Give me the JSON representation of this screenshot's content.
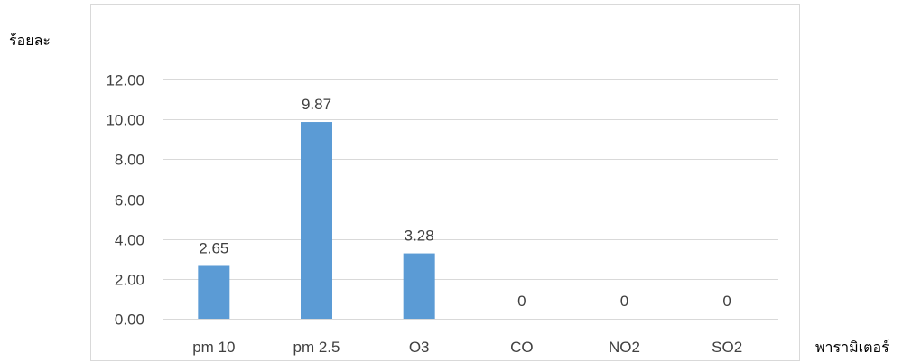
{
  "chart_data": {
    "type": "bar",
    "title": "",
    "xlabel": "พารามิเตอร์",
    "ylabel": "ร้อยละ",
    "categories": [
      "pm 10",
      "pm 2.5",
      "O3",
      "CO",
      "NO2",
      "SO2"
    ],
    "series": [
      {
        "values": [
          2.65,
          9.87,
          3.28,
          0,
          0,
          0
        ]
      }
    ],
    "data_labels": [
      "2.65",
      "9.87",
      "3.28",
      "0",
      "0",
      "0"
    ],
    "ylim": [
      0,
      12
    ],
    "yticks": [
      "0.00",
      "2.00",
      "4.00",
      "6.00",
      "8.00",
      "10.00",
      "12.00"
    ],
    "grid": true,
    "legend": "none",
    "colors": {
      "bar": "#5B9BD5",
      "grid": "#D9D9D9",
      "frame": "#D9D9D9",
      "text": "#404040"
    }
  }
}
